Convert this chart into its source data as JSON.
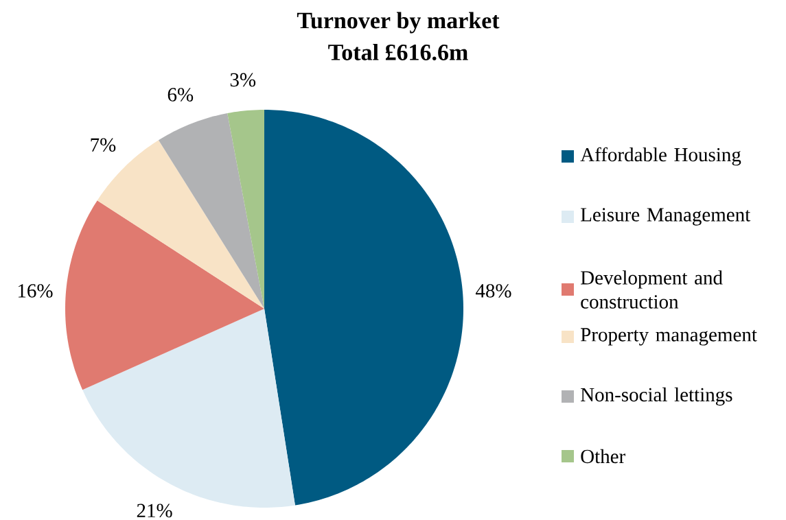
{
  "chart_data": {
    "type": "pie",
    "title": "Turnover by market",
    "subtitle": "Total £616.6m",
    "categories": [
      "Affordable Housing",
      "Leisure Management",
      "Development and construction",
      "Property management",
      "Non-social lettings",
      "Other"
    ],
    "values": [
      48,
      21,
      16,
      7,
      6,
      3
    ],
    "value_labels": [
      "48%",
      "21%",
      "16%",
      "7%",
      "6%",
      "3%"
    ],
    "colors": [
      "#005a82",
      "#ddebf3",
      "#e07a70",
      "#f8e3c6",
      "#b1b2b4",
      "#a5c68b"
    ],
    "legend": "right"
  }
}
